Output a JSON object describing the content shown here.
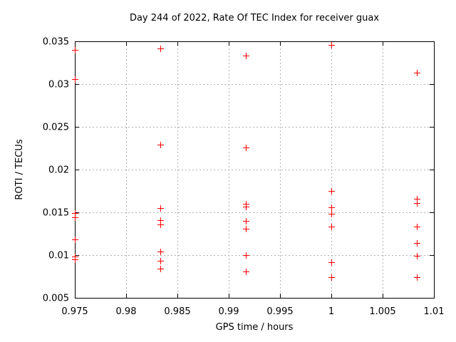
{
  "window": {
    "kind": "gnuplot-style scatter plot image"
  },
  "chart_data": {
    "type": "scatter",
    "title": "Day 244 of 2022, Rate Of TEC Index for receiver guax",
    "xlabel": "GPS time / hours",
    "ylabel": "ROTI / TECUs",
    "xlim": [
      0.975,
      1.01
    ],
    "ylim": [
      0.005,
      0.035
    ],
    "xticks": [
      0.975,
      0.98,
      0.985,
      0.99,
      0.995,
      1,
      1.005,
      1.01
    ],
    "xtick_labels": [
      "0.975",
      "0.98",
      "0.985",
      "0.99",
      "0.995",
      "1",
      "1.005",
      "1.01"
    ],
    "yticks": [
      0.005,
      0.01,
      0.015,
      0.02,
      0.025,
      0.03,
      0.035
    ],
    "ytick_labels": [
      "0.005",
      "0.01",
      "0.015",
      "0.02",
      "0.025",
      "0.03",
      "0.035"
    ],
    "grid": true,
    "legend_position": "none",
    "marker": {
      "shape": "plus",
      "color": "#ff0000",
      "size": 9
    },
    "colors": {
      "marker": "#ff0000",
      "grid": "#b0b0b0",
      "axis": "#000000",
      "background": "#ffffff"
    },
    "series": [
      {
        "name": "ROTI",
        "points": [
          [
            0.975,
            0.034
          ],
          [
            0.975,
            0.0306
          ],
          [
            0.975,
            0.0149
          ],
          [
            0.975,
            0.0144
          ],
          [
            0.975,
            0.0118
          ],
          [
            0.975,
            0.0098
          ],
          [
            0.975,
            0.0095
          ],
          [
            0.9833,
            0.0342
          ],
          [
            0.9833,
            0.0229
          ],
          [
            0.9833,
            0.0155
          ],
          [
            0.9833,
            0.0141
          ],
          [
            0.9833,
            0.0136
          ],
          [
            0.9833,
            0.0104
          ],
          [
            0.9833,
            0.0093
          ],
          [
            0.9833,
            0.0084
          ],
          [
            0.9917,
            0.0333
          ],
          [
            0.9917,
            0.0226
          ],
          [
            0.9917,
            0.016
          ],
          [
            0.9917,
            0.0157
          ],
          [
            0.9917,
            0.014
          ],
          [
            0.9917,
            0.0131
          ],
          [
            0.9917,
            0.01
          ],
          [
            0.9917,
            0.0081
          ],
          [
            1.0,
            0.0346
          ],
          [
            1.0,
            0.0175
          ],
          [
            1.0,
            0.0156
          ],
          [
            1.0,
            0.0148
          ],
          [
            1.0,
            0.0133
          ],
          [
            1.0,
            0.0092
          ],
          [
            1.0,
            0.0074
          ],
          [
            1.0083,
            0.0313
          ],
          [
            1.0083,
            0.0166
          ],
          [
            1.0083,
            0.0161
          ],
          [
            1.0083,
            0.0133
          ],
          [
            1.0083,
            0.0114
          ],
          [
            1.0083,
            0.0099
          ],
          [
            1.0083,
            0.0074
          ]
        ]
      }
    ]
  }
}
